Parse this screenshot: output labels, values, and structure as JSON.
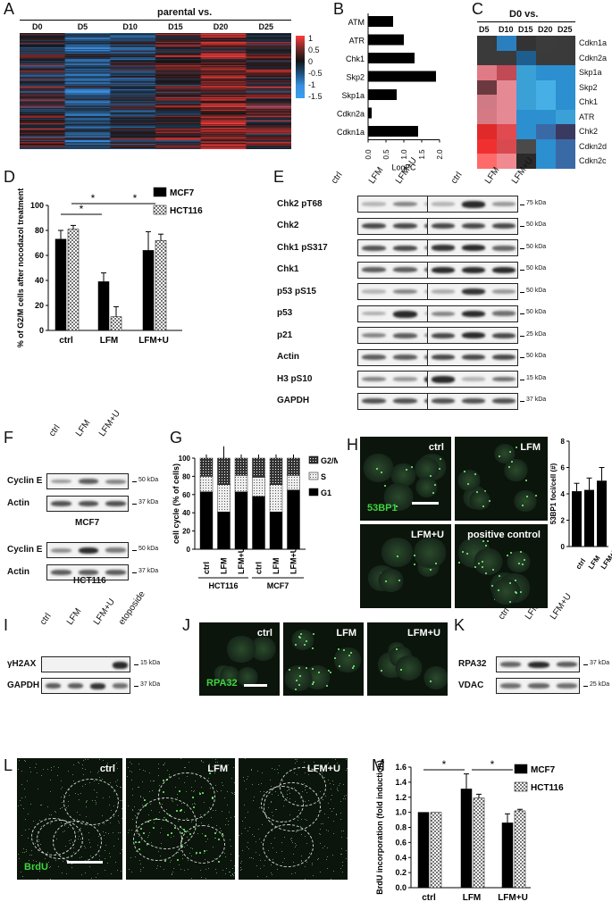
{
  "panels": [
    "A",
    "B",
    "C",
    "D",
    "E",
    "F",
    "G",
    "H",
    "I",
    "J",
    "K",
    "L",
    "M"
  ],
  "A": {
    "title": "parental vs.",
    "columns": [
      "D0",
      "D5",
      "D10",
      "D15",
      "D20",
      "D25"
    ],
    "colorbar": [
      "1",
      "0.5",
      "0",
      "-0.5",
      "-1",
      "-1.5"
    ]
  },
  "B": {
    "genes": [
      "ATM",
      "ATR",
      "Chk1",
      "Skp2",
      "Skp1a",
      "Cdkn2a",
      "Cdkn1a"
    ],
    "xlabel": "LogFC",
    "ticks": [
      "0.0",
      "0.5",
      "1.0",
      "1.5",
      "2.0"
    ]
  },
  "C": {
    "title": "D0 vs.",
    "columns": [
      "D5",
      "D10",
      "D15",
      "D20",
      "D25"
    ],
    "rows": [
      "Cdkn1a",
      "Cdkn2a",
      "Skp1a",
      "Skp2",
      "Chk1",
      "ATR",
      "Chk2",
      "Cdkn2d",
      "Cdkn2c"
    ]
  },
  "D": {
    "ylabel": "% of G2/M cells after nocodazol treatment",
    "groups": [
      "ctrl",
      "LFM",
      "LFM+U"
    ],
    "legend": [
      "MCF7",
      "HCT116"
    ],
    "yticks": [
      "0",
      "20",
      "40",
      "60",
      "80",
      "100"
    ],
    "star": "*"
  },
  "E": {
    "lanes": [
      "ctrl",
      "LFM",
      "LFM+U",
      "ctrl",
      "LFM",
      "LFM+U"
    ],
    "rows": [
      "Chk2 pT68",
      "Chk2",
      "Chk1 pS317",
      "Chk1",
      "p53 pS15",
      "p53",
      "p21",
      "Actin",
      "H3 pS10",
      "GAPDH"
    ],
    "kda": [
      "75 kDa",
      "50 kDa",
      "50 kDa",
      "50 kDa",
      "50 kDa",
      "50 kDa",
      "25 kDa",
      "50 kDa",
      "15 kDa",
      "37 kDa"
    ],
    "cells": [
      "MCF7",
      "HCT116"
    ]
  },
  "F": {
    "lanes": [
      "ctrl",
      "LFM",
      "LFM+U"
    ],
    "rows": [
      "Cyclin E",
      "Actin",
      "Cyclin E",
      "Actin"
    ],
    "kda": [
      "50 kDa",
      "37 kDa",
      "50 kDa",
      "37 kDa"
    ],
    "cells": [
      "MCF7",
      "HCT116"
    ]
  },
  "G": {
    "ylabel": "cell cycle (% of cells)",
    "yticks": [
      "0",
      "20",
      "40",
      "60",
      "80",
      "100"
    ],
    "lanes": [
      "ctrl",
      "LFM",
      "LFM+U",
      "ctrl",
      "LFM",
      "LFM+U"
    ],
    "cells": [
      "HCT116",
      "MCF7"
    ],
    "legend": [
      "G2/M",
      "S",
      "G1"
    ]
  },
  "H": {
    "images": [
      "ctrl",
      "LFM",
      "LFM+U",
      "positive control"
    ],
    "channel": "53BP1",
    "ylabel": "53BP1 foci/cell (#)",
    "yticks": [
      "0",
      "2",
      "4",
      "6",
      "8"
    ],
    "groups": [
      "ctrl",
      "LFM",
      "LFM+U"
    ]
  },
  "I": {
    "lanes": [
      "ctrl",
      "LFM",
      "LFM+U",
      "etoposide"
    ],
    "rows": [
      "γH2AX",
      "GAPDH"
    ],
    "kda": [
      "15 kDa",
      "37 kDa"
    ]
  },
  "J": {
    "images": [
      "ctrl",
      "LFM",
      "LFM+U"
    ],
    "channel": "RPA32"
  },
  "K": {
    "lanes": [
      "ctrl",
      "LFM",
      "LFM+U"
    ],
    "rows": [
      "RPA32",
      "VDAC"
    ],
    "kda": [
      "37 kDa",
      "25 kDa"
    ]
  },
  "L": {
    "images": [
      "ctrl",
      "LFM",
      "LFM+U"
    ],
    "channel": "BrdU"
  },
  "M": {
    "ylabel": "BrdU incorporation (fold induction)",
    "yticks": [
      "0.0",
      "0.2",
      "0.4",
      "0.6",
      "0.8",
      "1.0",
      "1.2",
      "1.4",
      "1.6"
    ],
    "groups": [
      "ctrl",
      "LFM",
      "LFM+U"
    ],
    "legend": [
      "MCF7",
      "HCT116"
    ],
    "star": "*"
  },
  "chart_data": [
    {
      "panel": "B",
      "type": "bar",
      "orientation": "horizontal",
      "categories": [
        "ATM",
        "ATR",
        "Chk1",
        "Skp2",
        "Skp1a",
        "Cdkn2a",
        "Cdkn1a"
      ],
      "values": [
        0.7,
        1.0,
        1.3,
        1.9,
        0.8,
        0.1,
        1.4
      ],
      "xlabel": "LogFC",
      "xlim": [
        0,
        2.0
      ]
    },
    {
      "panel": "D",
      "type": "bar",
      "categories": [
        "ctrl",
        "LFM",
        "LFM+U"
      ],
      "series": [
        {
          "name": "MCF7",
          "values": [
            73,
            39,
            64
          ],
          "errors": [
            7,
            7,
            15
          ]
        },
        {
          "name": "HCT116",
          "values": [
            81,
            11,
            72
          ],
          "errors": [
            3,
            8,
            5
          ]
        }
      ],
      "ylabel": "% of G2/M cells after nocodazol treatment",
      "ylim": [
        0,
        100
      ]
    },
    {
      "panel": "G",
      "type": "bar",
      "stacked": true,
      "categories": [
        "ctrl",
        "LFM",
        "LFM+U",
        "ctrl",
        "LFM",
        "LFM+U"
      ],
      "groups": [
        "HCT116",
        "MCF7"
      ],
      "series": [
        {
          "name": "G1",
          "values": [
            63,
            41,
            63,
            58,
            41,
            65
          ]
        },
        {
          "name": "S",
          "values": [
            17,
            30,
            18,
            21,
            30,
            16
          ]
        },
        {
          "name": "G2/M",
          "values": [
            20,
            29,
            19,
            21,
            29,
            19
          ]
        }
      ],
      "ylabel": "cell cycle (% of cells)",
      "ylim": [
        0,
        100
      ]
    },
    {
      "panel": "H",
      "type": "bar",
      "categories": [
        "ctrl",
        "LFM",
        "LFM+U"
      ],
      "values": [
        4.2,
        4.3,
        5.0
      ],
      "errors": [
        0.6,
        0.9,
        1.0
      ],
      "ylabel": "53BP1 foci/cell (#)",
      "ylim": [
        0,
        8
      ]
    },
    {
      "panel": "M",
      "type": "bar",
      "categories": [
        "ctrl",
        "LFM",
        "LFM+U"
      ],
      "series": [
        {
          "name": "MCF7",
          "values": [
            1.0,
            1.31,
            0.86
          ],
          "errors": [
            0,
            0.2,
            0.12
          ]
        },
        {
          "name": "HCT116",
          "values": [
            1.0,
            1.19,
            1.02
          ],
          "errors": [
            0,
            0.05,
            0.02
          ]
        }
      ],
      "ylabel": "BrdU incorporation (fold induction)",
      "ylim": [
        0,
        1.6
      ]
    }
  ]
}
